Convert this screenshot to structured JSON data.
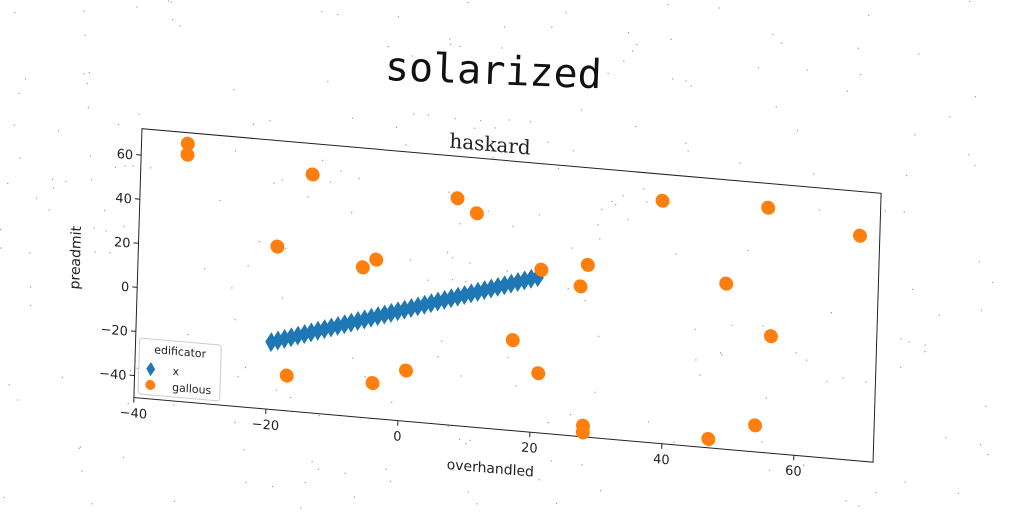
{
  "suptitle": "solarized",
  "chart_data": {
    "type": "scatter",
    "title": "haskard",
    "xlabel": "overhandled",
    "ylabel": "preadmit",
    "xlim": [
      -40,
      72
    ],
    "ylim": [
      -50,
      72
    ],
    "xticks": [
      -40,
      -20,
      0,
      20,
      40,
      60
    ],
    "yticks": [
      -40,
      -20,
      0,
      20,
      40,
      60
    ],
    "x_tick_labels": [
      "−40",
      "−20",
      "0",
      "20",
      "40",
      "60"
    ],
    "y_tick_labels": [
      "−40",
      "−20",
      "0",
      "20",
      "40",
      "60"
    ],
    "grid": false,
    "legend": {
      "title": "edificator",
      "placement": "lower-left"
    },
    "series": [
      {
        "name": "x",
        "marker": "diamond",
        "color": "#1f77b4",
        "x": [
          -19.5,
          -18.5,
          -17.5,
          -16.5,
          -15.5,
          -14.5,
          -13.5,
          -12.5,
          -11.5,
          -10.5,
          -9.5,
          -8.5,
          -7.5,
          -6.5,
          -5.5,
          -4.5,
          -3.5,
          -2.5,
          -1.5,
          -0.5,
          0.5,
          1.5,
          2.5,
          3.5,
          4.5,
          5.5,
          6.5,
          7.5,
          8.5,
          9.5,
          10.5,
          11.5,
          12.5,
          13.5,
          14.5,
          15.5,
          16.5,
          17.5,
          18.5,
          19.5,
          20.5
        ],
        "y": [
          -19.5,
          -18.5,
          -17.5,
          -16.5,
          -15.5,
          -14.5,
          -13.5,
          -12.5,
          -11.5,
          -10.5,
          -9.5,
          -8.5,
          -7.5,
          -6.5,
          -5.5,
          -4.5,
          -3.5,
          -2.5,
          -1.5,
          -0.5,
          0.5,
          1.5,
          2.5,
          3.5,
          4.5,
          5.5,
          6.5,
          7.5,
          8.5,
          9.5,
          10.5,
          11.5,
          12.5,
          13.5,
          14.5,
          15.5,
          16.5,
          17.5,
          18.5,
          19.5,
          20.5
        ]
      },
      {
        "name": "gallous",
        "marker": "circle",
        "color": "#ff7f0e",
        "x": [
          -33,
          -33,
          -14,
          -19,
          -17,
          -6,
          -4,
          -4,
          1,
          8,
          11,
          17,
          21,
          21,
          27,
          28,
          28,
          28,
          39,
          47,
          49,
          54,
          55,
          56,
          69
        ],
        "y": [
          67,
          62,
          58,
          24,
          -34,
          18,
          22,
          -34,
          -27,
          53,
          47,
          -9,
          -23,
          24,
          18,
          28,
          -45,
          -48,
          60,
          -46,
          25,
          -38,
          61,
          3,
          52
        ]
      }
    ]
  }
}
